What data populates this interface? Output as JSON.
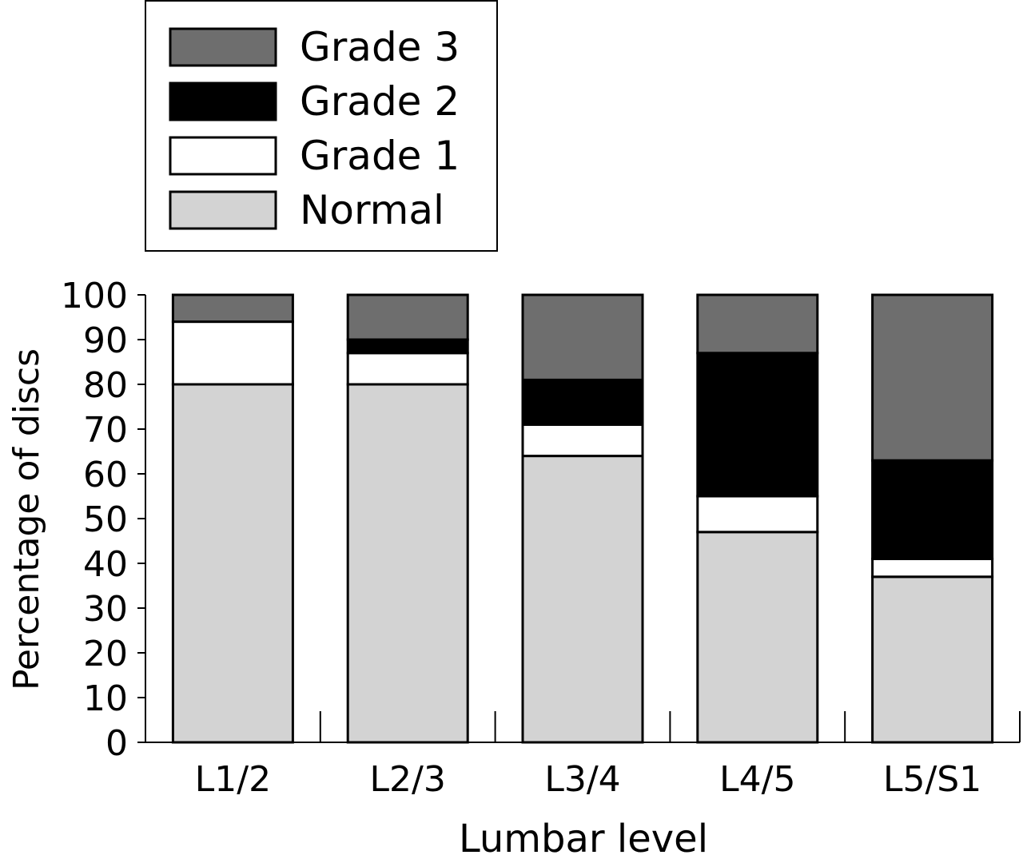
{
  "chart_data": {
    "type": "bar",
    "stacked": true,
    "categories": [
      "L1/2",
      "L2/3",
      "L3/4",
      "L4/5",
      "L5/S1"
    ],
    "series": [
      {
        "name": "Normal",
        "color": "#d3d3d3",
        "values": [
          80,
          80,
          64,
          47,
          37
        ]
      },
      {
        "name": "Grade 1",
        "color": "#ffffff",
        "values": [
          14,
          7,
          7,
          8,
          4
        ]
      },
      {
        "name": "Grade 2",
        "color": "#000000",
        "values": [
          0,
          3,
          10,
          32,
          22
        ]
      },
      {
        "name": "Grade 3",
        "color": "#6e6e6e",
        "values": [
          6,
          10,
          19,
          13,
          37
        ]
      }
    ],
    "legend_order": [
      "Grade 3",
      "Grade 2",
      "Grade 1",
      "Normal"
    ],
    "legend_position": "top-left",
    "xlabel": "Lumbar level",
    "ylabel": "Percentage of discs",
    "ylim": [
      0,
      100
    ],
    "yticks": [
      "0",
      "10",
      "20",
      "30",
      "40",
      "50",
      "60",
      "70",
      "80",
      "90",
      "100"
    ],
    "grid": false
  }
}
